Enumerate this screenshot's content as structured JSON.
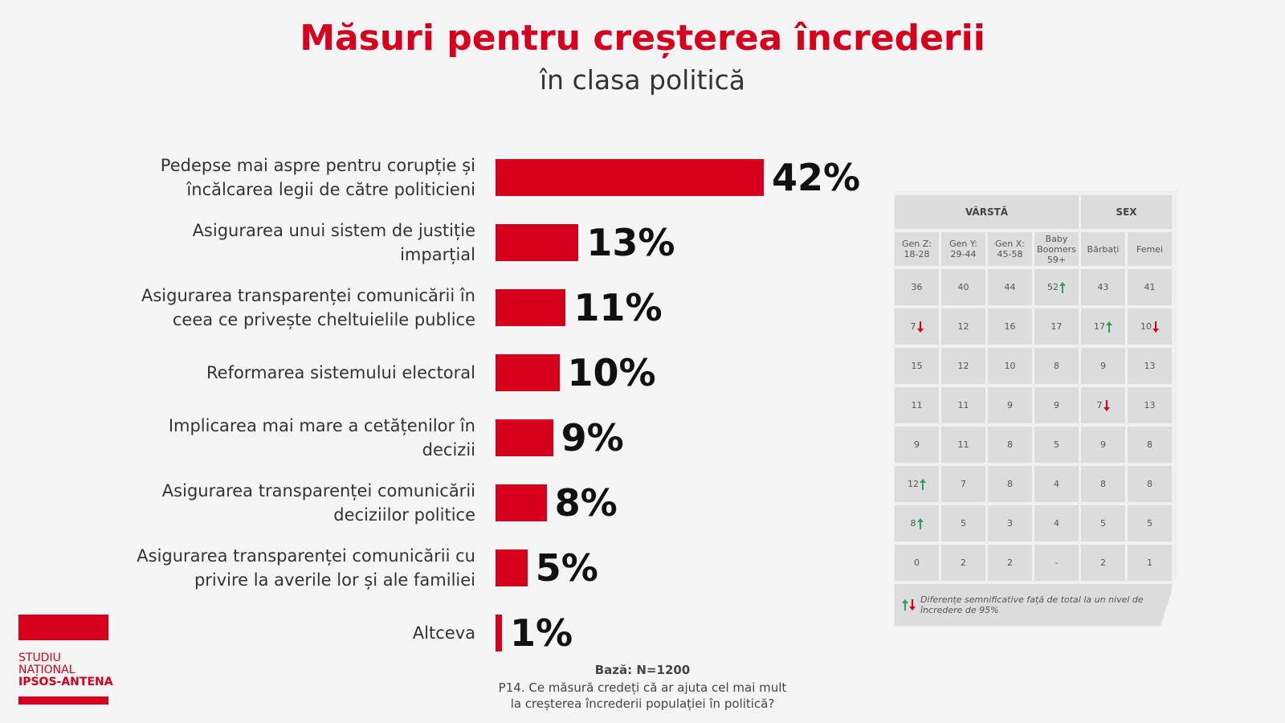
{
  "chart_data": {
    "type": "bar",
    "orientation": "horizontal",
    "title": "Măsuri pentru creșterea încrederii",
    "subtitle": "în clasa politică",
    "categories": [
      "Pedepse mai aspre pentru corupție și încălcarea legii de către politicieni",
      "Asigurarea unui sistem de justiție imparțial",
      "Asigurarea transparenței comunicării în ceea ce privește cheltuielile publice",
      "Reformarea sistemului electoral",
      "Implicarea mai mare a cetățenilor în decizii",
      "Asigurarea transparenței comunicării deciziilor politice",
      "Asigurarea transparenței comunicării cu privire la averile lor și ale familiei",
      "Altceva"
    ],
    "values": [
      42,
      13,
      11,
      10,
      9,
      8,
      5,
      1
    ],
    "value_labels": [
      "42%",
      "13%",
      "11%",
      "10%",
      "9%",
      "8%",
      "5%",
      "1%"
    ],
    "color": "#d7001c"
  },
  "table": {
    "groups": [
      "VÂRSTĂ",
      "SEX"
    ],
    "columns": [
      "Gen Z: 18-28",
      "Gen Y: 29-44",
      "Gen X: 45-58",
      "Baby Boomers 59+",
      "Bărbați",
      "Femei"
    ],
    "rows": [
      [
        36,
        40,
        44,
        52,
        43,
        41
      ],
      [
        7,
        12,
        16,
        17,
        17,
        10
      ],
      [
        15,
        12,
        10,
        8,
        9,
        13
      ],
      [
        11,
        11,
        9,
        9,
        7,
        13
      ],
      [
        9,
        11,
        8,
        5,
        9,
        8
      ],
      [
        12,
        7,
        8,
        4,
        8,
        8
      ],
      [
        8,
        5,
        3,
        4,
        5,
        5
      ],
      [
        0,
        2,
        2,
        "-",
        2,
        1
      ]
    ],
    "significance": [
      [
        null,
        null,
        null,
        "up",
        null,
        null
      ],
      [
        "down",
        null,
        null,
        null,
        "up",
        "down"
      ],
      [
        null,
        null,
        null,
        null,
        null,
        null
      ],
      [
        null,
        null,
        null,
        null,
        "down",
        null
      ],
      [
        null,
        null,
        null,
        null,
        null,
        null
      ],
      [
        "up",
        null,
        null,
        null,
        null,
        null
      ],
      [
        "up",
        null,
        null,
        null,
        null,
        null
      ],
      [
        null,
        null,
        null,
        null,
        null,
        null
      ]
    ],
    "legend": "Diferențe semnificative față de total la un nivel de încredere de 95%"
  },
  "footer": {
    "base": "Bază: N=1200",
    "question": [
      "P14. Ce măsură credeți că ar ajuta cel mai mult",
      "la creșterea încrederii populației în politică?"
    ]
  },
  "logo": [
    "STUDIU",
    "NAȚIONAL",
    "IPSOS-ANTENA"
  ]
}
